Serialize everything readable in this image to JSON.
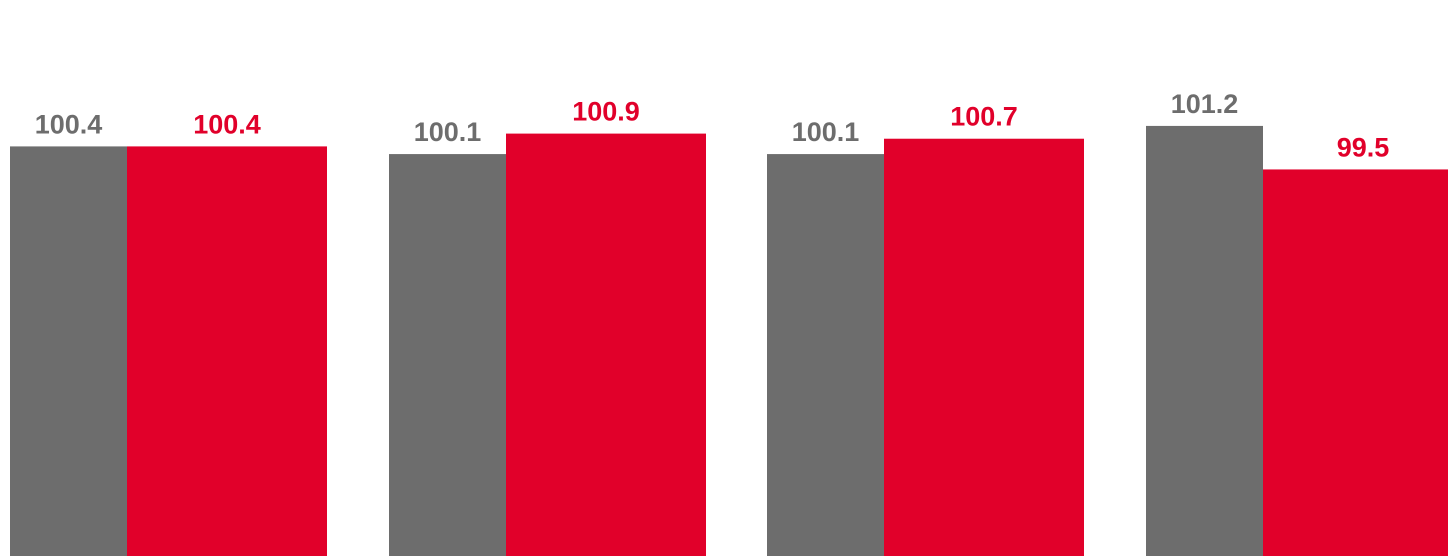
{
  "chart_data": {
    "type": "bar",
    "title": "",
    "xlabel": "",
    "ylabel": "",
    "categories": [
      "",
      "",
      "",
      ""
    ],
    "series": [
      {
        "values": [
          100.4,
          100.1,
          100.1,
          101.2
        ],
        "value_labels": [
          "100.4",
          "100.1",
          "100.1",
          "101.2"
        ],
        "color": "#6d6d6d"
      },
      {
        "values": [
          100.4,
          100.9,
          100.7,
          99.5
        ],
        "value_labels": [
          "100.4",
          "100.9",
          "100.7",
          "99.5"
        ],
        "color": "#e1002a"
      }
    ],
    "ylim": [
      84.4,
      101.7
    ],
    "grid": false,
    "legend": "none"
  }
}
